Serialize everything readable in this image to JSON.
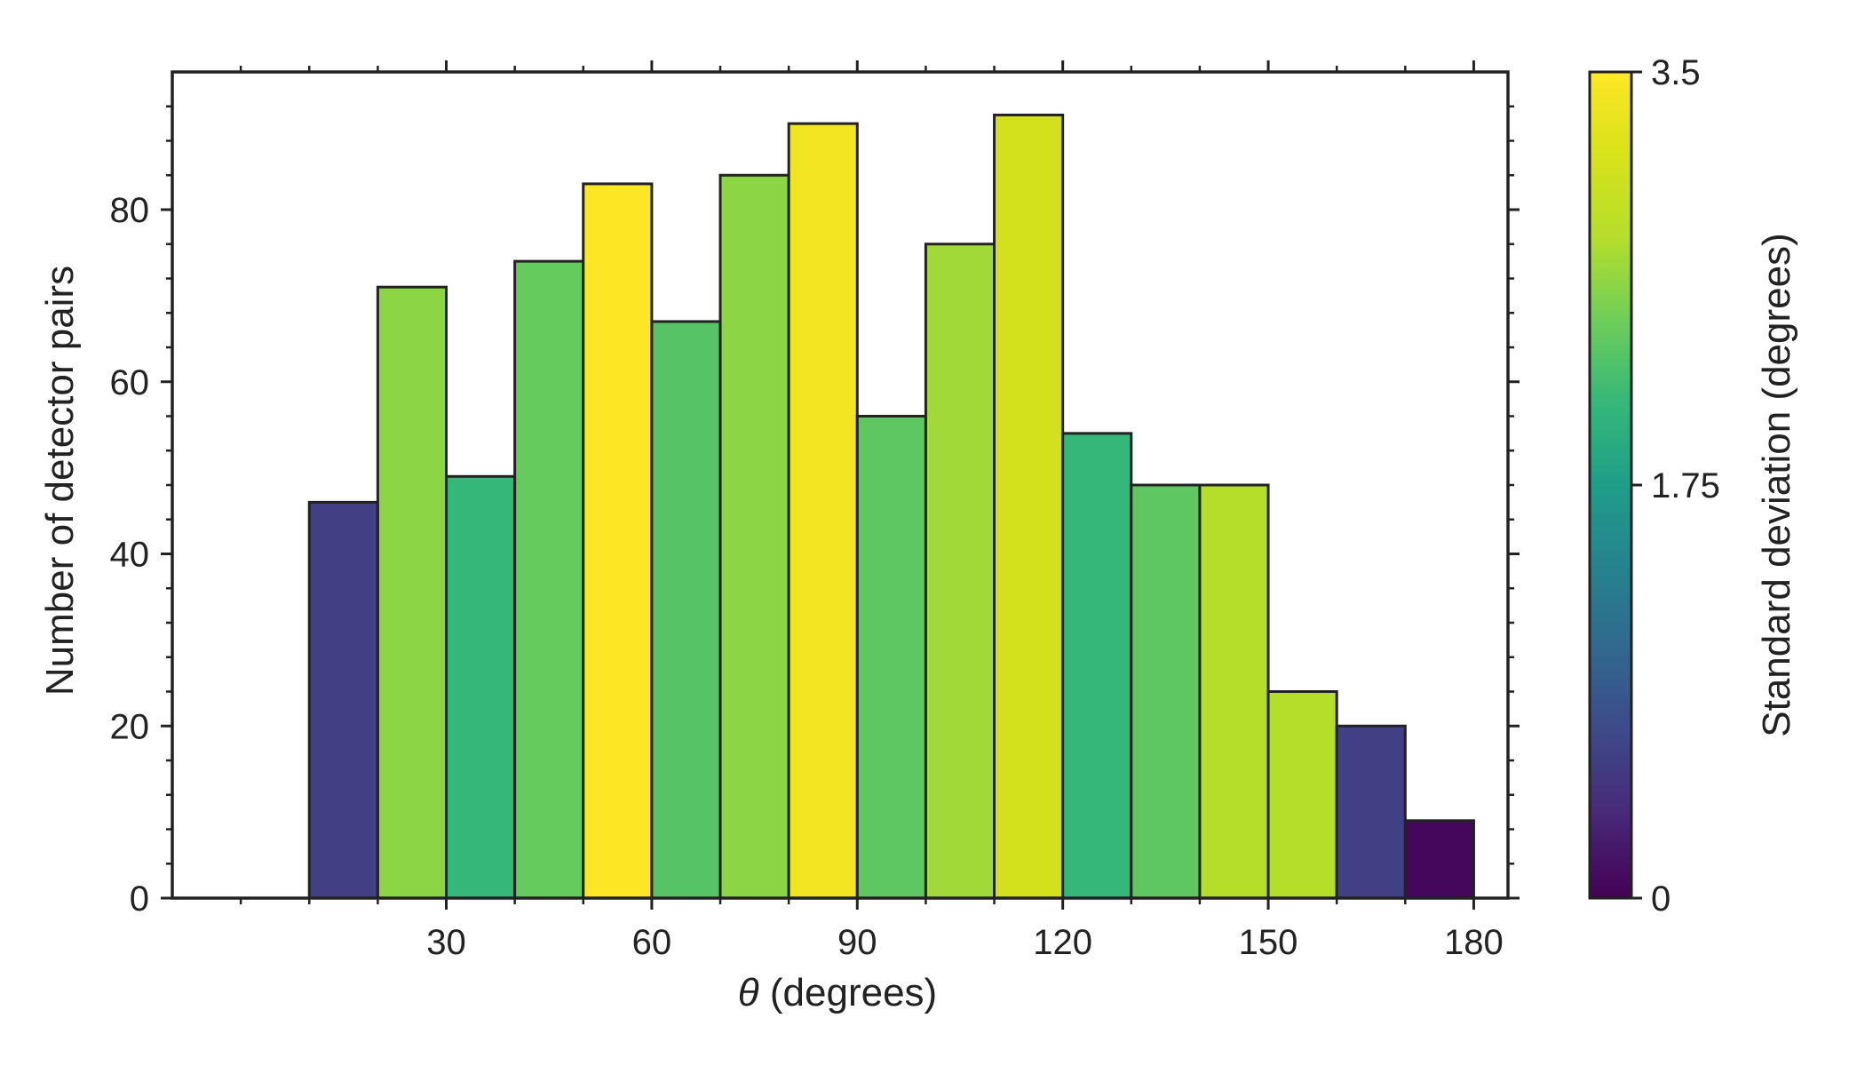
{
  "chart_data": {
    "type": "bar",
    "subtype": "histogram",
    "xlabel_symbol": "θ",
    "xlabel_text": " (degrees)",
    "ylabel": "Number of detector pairs",
    "xlim": [
      -10,
      185
    ],
    "ylim": [
      0,
      96
    ],
    "xticks": [
      30,
      60,
      90,
      120,
      150,
      180
    ],
    "yticks": [
      0,
      20,
      40,
      60,
      80
    ],
    "bin_width": 10,
    "bins": [
      {
        "x0": 10,
        "x1": 20,
        "count": 46,
        "std": 0.6
      },
      {
        "x0": 20,
        "x1": 30,
        "count": 71,
        "std": 2.6
      },
      {
        "x0": 30,
        "x1": 40,
        "count": 49,
        "std": 2.1
      },
      {
        "x0": 40,
        "x1": 50,
        "count": 74,
        "std": 2.4
      },
      {
        "x0": 50,
        "x1": 60,
        "count": 83,
        "std": 3.5
      },
      {
        "x0": 60,
        "x1": 70,
        "count": 67,
        "std": 2.3
      },
      {
        "x0": 70,
        "x1": 80,
        "count": 84,
        "std": 2.6
      },
      {
        "x0": 80,
        "x1": 90,
        "count": 90,
        "std": 3.4
      },
      {
        "x0": 90,
        "x1": 100,
        "count": 56,
        "std": 2.35
      },
      {
        "x0": 100,
        "x1": 110,
        "count": 76,
        "std": 2.7
      },
      {
        "x0": 110,
        "x1": 120,
        "count": 91,
        "std": 3.1
      },
      {
        "x0": 120,
        "x1": 130,
        "count": 54,
        "std": 2.1
      },
      {
        "x0": 130,
        "x1": 140,
        "count": 48,
        "std": 2.35
      },
      {
        "x0": 140,
        "x1": 150,
        "count": 48,
        "std": 2.8
      },
      {
        "x0": 150,
        "x1": 160,
        "count": 24,
        "std": 2.8
      },
      {
        "x0": 160,
        "x1": 170,
        "count": 20,
        "std": 0.6
      },
      {
        "x0": 170,
        "x1": 180,
        "count": 9,
        "std": 0.05
      }
    ],
    "colorbar": {
      "label": "Standard deviation (degrees)",
      "range": [
        0,
        3.5
      ],
      "ticks": [
        "0",
        "1.75",
        "3.5"
      ],
      "colormap": "viridis"
    },
    "grid": false,
    "colors": {
      "edge": "#222222",
      "axis": "#222222",
      "text": "#222222"
    }
  }
}
